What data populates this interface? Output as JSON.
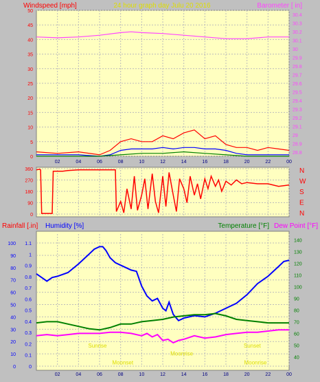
{
  "chart_data": [
    {
      "type": "line",
      "title": "24 hour graph day   Julu 20 2016",
      "left_axis_label": "Windspeed [mph]",
      "right_axis_label": "Barometer [ in]",
      "x_ticks": [
        "02",
        "04",
        "06",
        "08",
        "10",
        "12",
        "14",
        "16",
        "18",
        "20",
        "22",
        "00"
      ],
      "y_left_ticks": [
        "0",
        "5",
        "10",
        "15",
        "20",
        "25",
        "30",
        "35",
        "40",
        "45",
        "50"
      ],
      "y_right_ticks": [
        "28.8",
        "28.9",
        "29",
        "29.1",
        "29.2",
        "29.3",
        "29.4",
        "29.5",
        "29.6",
        "29.7",
        "29.8",
        "29.9",
        "30",
        "30.1",
        "30.2",
        "30.3",
        "30.4"
      ],
      "ylim_left": [
        0,
        50
      ],
      "ylim_right": [
        28.75,
        30.45
      ],
      "xlim_hours": [
        0,
        24
      ],
      "grid": true,
      "series": [
        {
          "axis": "right",
          "color": "#ff44ff",
          "x": [
            0,
            2,
            4,
            6,
            8,
            9,
            10,
            12,
            14,
            16,
            18,
            20,
            22,
            24
          ],
          "values": [
            30.14,
            30.13,
            30.14,
            30.16,
            30.19,
            30.2,
            30.19,
            30.18,
            30.16,
            30.14,
            30.12,
            30.12,
            30.14,
            30.14
          ]
        },
        {
          "axis": "left",
          "color": "#ff0000",
          "x": [
            0,
            2,
            4,
            6,
            7,
            8,
            9,
            10,
            11,
            12,
            13,
            14,
            15,
            16,
            17,
            18,
            19,
            20,
            21,
            22,
            23,
            24
          ],
          "values": [
            1.5,
            1,
            1.5,
            0.5,
            2,
            5,
            6,
            5,
            5,
            7,
            6,
            8,
            9,
            6,
            7,
            4,
            3,
            3,
            2,
            3,
            2.5,
            2
          ]
        },
        {
          "axis": "left",
          "color": "#0000ff",
          "x": [
            0,
            2,
            4,
            6,
            7,
            8,
            9,
            10,
            11,
            12,
            13,
            14,
            15,
            16,
            17,
            18,
            19,
            20,
            22,
            24
          ],
          "values": [
            0.5,
            0.5,
            0.5,
            0,
            0.5,
            2,
            2.5,
            2.5,
            2.5,
            3,
            2.5,
            3,
            3,
            2.5,
            2.5,
            2,
            1,
            0.5,
            0.5,
            0.5
          ]
        },
        {
          "axis": "left",
          "color": "#008000",
          "x": [
            0,
            2,
            4,
            6,
            8,
            10,
            12,
            14,
            16,
            18,
            20,
            22,
            24
          ],
          "values": [
            0,
            0,
            0,
            0,
            0.5,
            1,
            1,
            1.5,
            1,
            0.5,
            0,
            0,
            0
          ]
        }
      ]
    },
    {
      "type": "scatter",
      "y_ticks": [
        "360",
        "270",
        "180",
        "90",
        "0"
      ],
      "compass_labels": [
        "N",
        "W",
        "S",
        "E",
        "N"
      ],
      "ylim": [
        0,
        360
      ],
      "xlim_hours": [
        0,
        24
      ],
      "color": "#ff0000",
      "x": [
        0,
        0.3,
        0.4,
        0.5,
        1.5,
        1.6,
        2.5,
        3,
        4,
        5,
        6,
        7,
        7.5,
        7.6,
        7.8,
        8,
        8.3,
        8.6,
        9,
        9.3,
        9.6,
        10,
        10.3,
        10.6,
        11,
        11.3,
        11.6,
        12,
        12.3,
        12.6,
        13,
        13.3,
        13.6,
        14,
        14.3,
        14.6,
        15,
        15.3,
        15.6,
        16,
        16.3,
        16.6,
        17,
        17.3,
        17.6,
        18,
        18.5,
        19,
        19.5,
        20,
        21,
        22,
        23,
        24
      ],
      "values": [
        350,
        355,
        350,
        5,
        5,
        340,
        340,
        345,
        350,
        350,
        350,
        350,
        350,
        20,
        60,
        100,
        10,
        200,
        40,
        300,
        30,
        150,
        280,
        40,
        320,
        100,
        10,
        300,
        60,
        330,
        150,
        20,
        280,
        200,
        90,
        300,
        150,
        240,
        120,
        280,
        200,
        300,
        220,
        270,
        180,
        260,
        230,
        270,
        240,
        250,
        240,
        240,
        220,
        230
      ]
    },
    {
      "type": "line",
      "left_axis_label_1": "Rainfall [.in]",
      "left_axis_label_2": "Humidity [%]",
      "right_axis_label_1": "Temperature [°F]",
      "right_axis_label_2": "Dew Point [°F]",
      "x_ticks": [
        "02",
        "04",
        "06",
        "08",
        "10",
        "12",
        "14",
        "16",
        "18",
        "20",
        "22",
        "00"
      ],
      "humidity_ticks": [
        "0",
        "10",
        "20",
        "30",
        "40",
        "50",
        "60",
        "70",
        "80",
        "90",
        "100"
      ],
      "rain_ticks": [
        "0",
        "0.1",
        "0.2",
        "0.3",
        "0.4",
        "0.5",
        "0.6",
        "0.7",
        "0.8",
        "0.9",
        "1",
        "1.1"
      ],
      "temp_ticks": [
        "40",
        "50",
        "60",
        "70",
        "80",
        "90",
        "100",
        "110",
        "120",
        "130",
        "140"
      ],
      "ylim_humidity": [
        0,
        107.3
      ],
      "ylim_rain": [
        0,
        1.18
      ],
      "ylim_temp": [
        32,
        145
      ],
      "xlim_hours": [
        0,
        24
      ],
      "grid": true,
      "annotations": [
        {
          "text": "Sunrise",
          "hour": 5.8,
          "value_humidity": 16.7,
          "color": "#dddd00"
        },
        {
          "text": "Moonset",
          "hour": 8.2,
          "value_humidity": 3,
          "color": "#dddd00"
        },
        {
          "text": "Moonrise",
          "hour": 13.8,
          "value_humidity": 10.4,
          "color": "#dddd00"
        },
        {
          "text": "Sunset",
          "hour": 20.5,
          "value_humidity": 16.7,
          "color": "#dddd00"
        },
        {
          "text": "Moonrise",
          "hour": 20.8,
          "value_humidity": 3,
          "color": "#dddd00"
        }
      ],
      "series": [
        {
          "axis": "humidity",
          "color": "#0000ff",
          "x": [
            0,
            0.5,
            1,
            1.5,
            2,
            3,
            4,
            5,
            5.5,
            6,
            6.3,
            6.6,
            7,
            7.5,
            8,
            8.5,
            9,
            9.5,
            10,
            10.5,
            11,
            11.5,
            12,
            12.3,
            12.6,
            13,
            13.5,
            14,
            15,
            16,
            17,
            17.5,
            18,
            19,
            20,
            21,
            22,
            23,
            23.5,
            24
          ],
          "values": [
            75,
            72,
            69,
            72,
            73,
            76,
            83,
            91,
            95,
            97,
            97,
            94,
            88,
            84,
            82,
            80,
            78,
            77,
            65,
            57,
            53,
            55,
            47,
            45,
            52,
            42,
            37,
            39,
            41,
            40,
            43,
            45,
            47,
            51,
            58,
            67,
            73,
            81,
            85,
            86
          ]
        },
        {
          "axis": "temp",
          "color": "#008000",
          "x": [
            0,
            1,
            2,
            3,
            4,
            5,
            6,
            7,
            8,
            9,
            10,
            11,
            12,
            13,
            14,
            15,
            16,
            17,
            18,
            19,
            20,
            21,
            22,
            23,
            24
          ],
          "values": [
            69,
            70,
            70,
            68,
            66,
            64,
            63,
            65,
            68,
            68,
            70,
            71,
            72,
            74,
            75,
            76,
            76,
            77,
            75,
            72,
            71,
            70,
            69,
            69,
            69
          ]
        },
        {
          "axis": "temp",
          "color": "#ff00ff",
          "x": [
            0,
            1,
            2,
            3,
            4,
            5,
            6,
            7,
            8,
            9,
            10,
            10.5,
            11,
            11.5,
            12,
            12.5,
            13,
            13.5,
            14,
            15,
            16,
            17,
            18,
            19,
            20,
            21,
            22,
            23,
            24
          ],
          "values": [
            58,
            59,
            58,
            59,
            60,
            60,
            60,
            61,
            61,
            60,
            58,
            60,
            57,
            59,
            54,
            55,
            52,
            54,
            55,
            58,
            56,
            57,
            59,
            60,
            61,
            61,
            62,
            63,
            63
          ]
        }
      ]
    }
  ]
}
